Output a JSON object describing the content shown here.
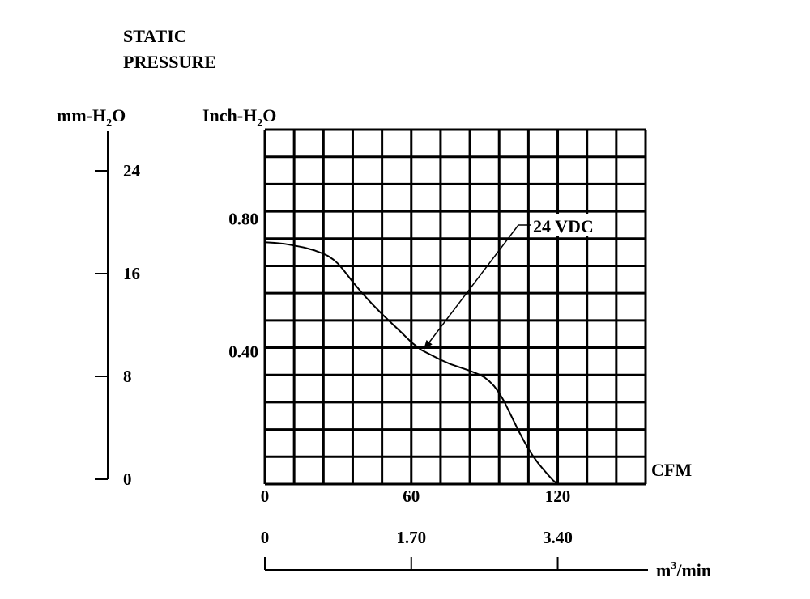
{
  "chart_data": {
    "type": "line",
    "title": [
      "STATIC",
      "PRESSURE"
    ],
    "left_axis": {
      "label_main": "mm-H",
      "label_sub": "2",
      "label_tail": "O",
      "ticks": [
        "24",
        "16",
        "8",
        "0"
      ],
      "tick_values": [
        24,
        16,
        8,
        0
      ]
    },
    "y_axis": {
      "label_main": "Inch-H",
      "label_sub": "2",
      "label_tail": "O",
      "ticks": [
        "0.80",
        "0.40"
      ],
      "tick_values": [
        0.8,
        0.4
      ]
    },
    "x_axis": {
      "unit": "CFM",
      "ticks": [
        "0",
        "60",
        "120"
      ],
      "tick_values": [
        0,
        60,
        120
      ]
    },
    "bottom_axis": {
      "unit_main": "m",
      "unit_sup": "3",
      "unit_tail": "/min",
      "ticks": [
        "0",
        "1.70",
        "3.40"
      ],
      "tick_values": [
        0,
        1.7,
        3.4
      ]
    },
    "xlim": [
      0,
      156
    ],
    "ylim": [
      0,
      1.07
    ],
    "grid": true,
    "series": [
      {
        "name": "24 VDC",
        "x": [
          0,
          4,
          8,
          12,
          16,
          20,
          24,
          26,
          28,
          30,
          32,
          36,
          40,
          44,
          48,
          52,
          56,
          60,
          64,
          68,
          72,
          76,
          80,
          84,
          88,
          90,
          92,
          94,
          96,
          98,
          100,
          102,
          104,
          106,
          108,
          110,
          112,
          114,
          116,
          118,
          120
        ],
        "y": [
          0.73,
          0.728,
          0.725,
          0.72,
          0.714,
          0.706,
          0.695,
          0.688,
          0.678,
          0.665,
          0.648,
          0.61,
          0.575,
          0.543,
          0.513,
          0.485,
          0.457,
          0.428,
          0.405,
          0.39,
          0.375,
          0.362,
          0.352,
          0.342,
          0.33,
          0.322,
          0.31,
          0.295,
          0.275,
          0.25,
          0.22,
          0.19,
          0.16,
          0.132,
          0.106,
          0.083,
          0.063,
          0.045,
          0.028,
          0.012,
          0.0
        ]
      }
    ],
    "annotation": {
      "text": "24 VDC",
      "points_to_x": 65,
      "points_to_y": 0.405
    }
  }
}
